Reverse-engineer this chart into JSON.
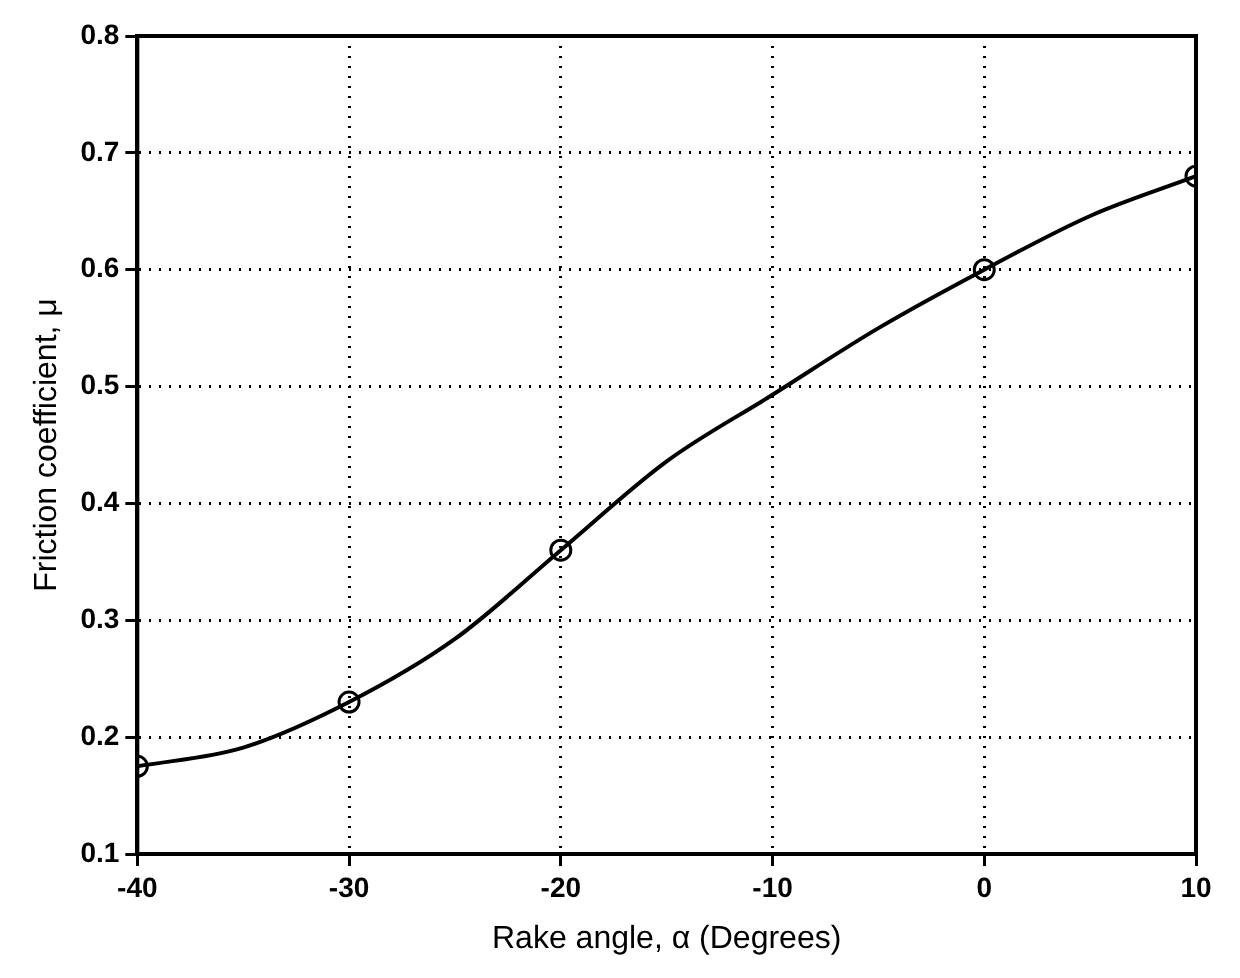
{
  "chart_data": {
    "type": "line",
    "xlabel": "Rake angle, α (Degrees)",
    "ylabel": "Friction coefficient, μ",
    "series": [
      {
        "color": "#000000",
        "marker": "none",
        "x": [
          -40,
          -35,
          -30,
          -25,
          -20,
          -15,
          -10,
          -5,
          0,
          5,
          10
        ],
        "values": [
          0.175,
          0.191,
          0.23,
          0.284,
          0.36,
          0.436,
          0.493,
          0.55,
          0.6,
          0.646,
          0.68
        ]
      },
      {
        "type": "scatter",
        "color": "#000000",
        "marker": "circle",
        "x": [
          -40,
          -30,
          -20,
          0,
          10
        ],
        "values": [
          0.175,
          0.23,
          0.36,
          0.6,
          0.68
        ]
      }
    ],
    "xlim": [
      -40,
      10
    ],
    "xticks": [
      -40,
      -30,
      -20,
      -10,
      0,
      10
    ],
    "ylim": [
      0.1,
      0.8
    ],
    "yticks": [
      0.1,
      0.2,
      0.3,
      0.4,
      0.5,
      0.6,
      0.7,
      0.8
    ],
    "grid": true,
    "legend": false
  }
}
